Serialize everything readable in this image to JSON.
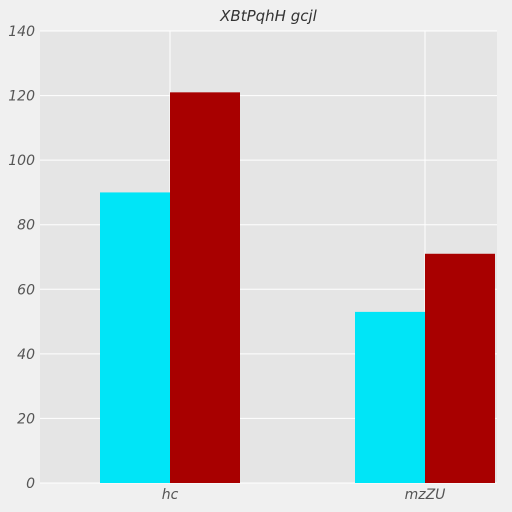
{
  "chart_data": {
    "type": "bar",
    "title": "XBtPqhH   gcjl",
    "xlabel": "",
    "ylabel": "",
    "categories": [
      "hc",
      "mzZU"
    ],
    "series": [
      {
        "values": [
          90,
          53
        ],
        "color": "#00e5f7"
      },
      {
        "values": [
          121,
          71
        ],
        "color": "#a80000"
      }
    ],
    "ylim": [
      0,
      140
    ],
    "yticks": [
      0,
      20,
      40,
      60,
      80,
      100,
      120,
      140
    ],
    "grid": true,
    "legend": "none",
    "colors": {
      "background": "#f0f0f0",
      "plot_background": "#e5e5e5",
      "grid": "#ffffff"
    }
  }
}
